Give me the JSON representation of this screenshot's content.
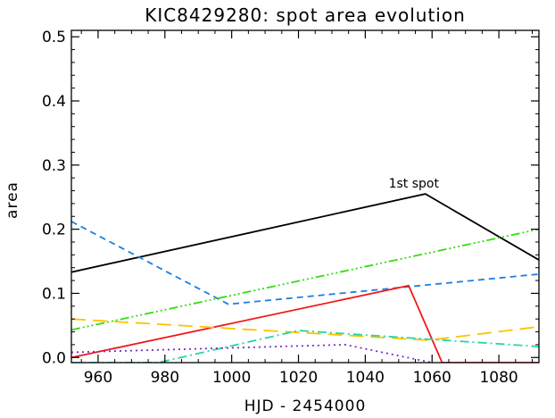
{
  "chart_data": {
    "type": "line",
    "title": "KIC8429280: spot area evolution",
    "xlabel": "HJD - 2454000",
    "ylabel": "area",
    "xlim": [
      952,
      1092
    ],
    "ylim": [
      -0.008,
      0.51
    ],
    "xticks": [
      960,
      980,
      1000,
      1020,
      1040,
      1060,
      1080
    ],
    "xtick_labels": [
      "960",
      "980",
      "1000",
      "1020",
      "1040",
      "1060",
      "1080"
    ],
    "yticks": [
      0.0,
      0.1,
      0.2,
      0.3,
      0.4,
      0.5
    ],
    "ytick_labels": [
      "0.0",
      "0.1",
      "0.2",
      "0.3",
      "0.4",
      "0.5"
    ],
    "annotations": [
      {
        "text": "1st spot",
        "x": 1047,
        "y": 0.265
      }
    ],
    "series": [
      {
        "color": "#000000",
        "dash": "solid",
        "x": [
          952,
          1058,
          1092
        ],
        "y": [
          0.133,
          0.255,
          0.152
        ]
      },
      {
        "color": "#1f7fe0",
        "dash": "dash",
        "x": [
          952,
          999,
          1092
        ],
        "y": [
          0.212,
          0.083,
          0.13
        ]
      },
      {
        "color": "#33dd11",
        "dash": "dashdotdotdot",
        "x": [
          952,
          1092
        ],
        "y": [
          0.043,
          0.2
        ]
      },
      {
        "color": "#f01818",
        "dash": "solid",
        "x": [
          952,
          1053,
          1063,
          1092
        ],
        "y": [
          0.0,
          0.112,
          -0.008,
          -0.008
        ]
      },
      {
        "color": "#ffc200",
        "dash": "longdash",
        "x": [
          952,
          1059,
          1092
        ],
        "y": [
          0.06,
          0.027,
          0.048
        ]
      },
      {
        "color": "#22d7a0",
        "dash": "dashdot",
        "x": [
          952,
          978,
          1020,
          1092
        ],
        "y": [
          -0.008,
          -0.008,
          0.042,
          0.017
        ]
      },
      {
        "color": "#7a2cc8",
        "dash": "dot",
        "x": [
          952,
          1034,
          1060
        ],
        "y": [
          0.008,
          0.02,
          -0.008
        ]
      }
    ]
  }
}
